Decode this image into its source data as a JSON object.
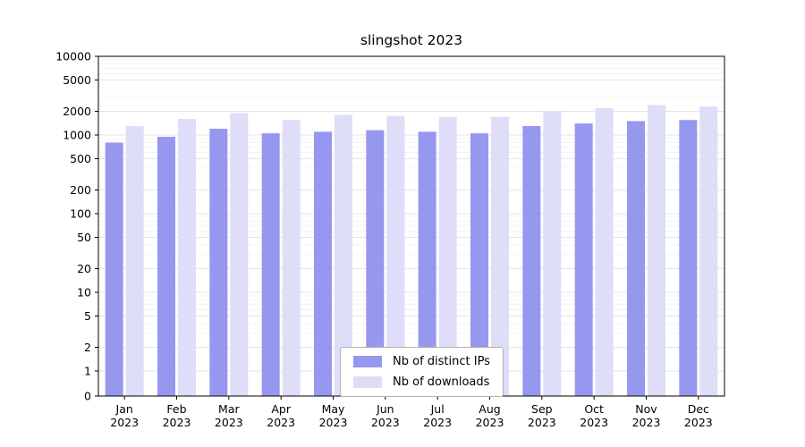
{
  "chart_data": {
    "type": "bar",
    "title": "slingshot 2023",
    "xlabel": "",
    "ylabel": "",
    "yscale": "symlog",
    "grid": true,
    "legend_position": "lower center",
    "year": "2023",
    "categories": [
      "Jan",
      "Feb",
      "Mar",
      "Apr",
      "May",
      "Jun",
      "Jul",
      "Aug",
      "Sep",
      "Oct",
      "Nov",
      "Dec"
    ],
    "yticks": [
      0,
      1,
      2,
      5,
      10,
      20,
      50,
      100,
      200,
      500,
      1000,
      2000,
      5000,
      10000
    ],
    "ylim": [
      0,
      10000
    ],
    "series": [
      {
        "name": "Nb of distinct IPs",
        "color": "#9697ee",
        "values": [
          800,
          950,
          1200,
          1050,
          1100,
          1150,
          1100,
          1050,
          1300,
          1400,
          1500,
          1550
        ]
      },
      {
        "name": "Nb of downloads",
        "color": "#dedef9",
        "values": [
          1300,
          1600,
          1900,
          1550,
          1800,
          1750,
          1700,
          1700,
          2000,
          2200,
          2400,
          2300
        ]
      }
    ]
  }
}
